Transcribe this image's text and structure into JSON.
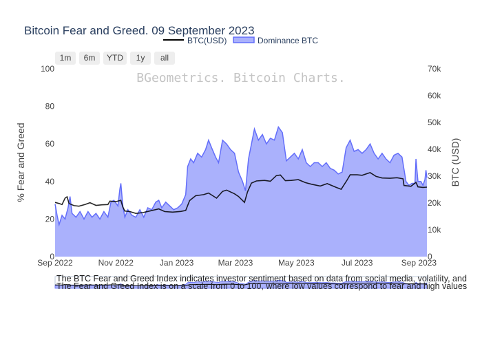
{
  "chart_data": {
    "type": "area",
    "title": "Bitcoin Fear and Greed. 09 September 2023",
    "watermark": "BGeometrics. Bitcoin Charts.",
    "legend": {
      "placement": "top-center",
      "entries": [
        {
          "name": "BTC(USD)",
          "style": "line",
          "color": "#000000"
        },
        {
          "name": "Dominance BTC",
          "style": "area",
          "color": "#636efa"
        }
      ]
    },
    "range_buttons": [
      "1m",
      "6m",
      "YTD",
      "1y",
      "all"
    ],
    "x_axis": {
      "type": "date",
      "range": [
        "2022-09-01",
        "2023-09-09"
      ],
      "tick_values": [
        "2022-09-01",
        "2022-11-01",
        "2023-01-01",
        "2023-03-01",
        "2023-05-01",
        "2023-07-01",
        "2023-09-01"
      ],
      "tick_labels": [
        "Sep 2022",
        "Nov 2022",
        "Jan 2023",
        "Mar 2023",
        "May 2023",
        "Jul 2023",
        "Sep 2023"
      ]
    },
    "y_axis_left": {
      "title": "% Fear and Greed",
      "range": [
        0,
        100
      ],
      "ticks": [
        0,
        20,
        40,
        60,
        80,
        100
      ]
    },
    "y_axis_right": {
      "title": "BTC (USD)",
      "range": [
        0,
        70000
      ],
      "ticks": [
        0,
        10000,
        20000,
        30000,
        40000,
        50000,
        60000,
        70000
      ],
      "tick_labels": [
        "0",
        "10k",
        "20k",
        "30k",
        "40k",
        "50k",
        "60k",
        "70k"
      ]
    },
    "grid": false,
    "series": [
      {
        "name": "Dominance BTC",
        "axis": "left",
        "color": "#636efa",
        "fill": "#aab1fc",
        "points": [
          [
            "2022-09-01",
            28
          ],
          [
            "2022-09-03",
            22
          ],
          [
            "2022-09-05",
            17
          ],
          [
            "2022-09-08",
            22
          ],
          [
            "2022-09-11",
            20
          ],
          [
            "2022-09-14",
            26
          ],
          [
            "2022-09-16",
            32
          ],
          [
            "2022-09-18",
            23
          ],
          [
            "2022-09-22",
            21
          ],
          [
            "2022-09-26",
            24
          ],
          [
            "2022-09-30",
            20
          ],
          [
            "2022-10-04",
            24
          ],
          [
            "2022-10-08",
            21
          ],
          [
            "2022-10-12",
            23
          ],
          [
            "2022-10-16",
            20
          ],
          [
            "2022-10-20",
            24
          ],
          [
            "2022-10-24",
            21
          ],
          [
            "2022-10-27",
            29
          ],
          [
            "2022-10-30",
            30
          ],
          [
            "2022-11-03",
            27
          ],
          [
            "2022-11-05",
            36
          ],
          [
            "2022-11-06",
            39
          ],
          [
            "2022-11-08",
            27
          ],
          [
            "2022-11-10",
            21
          ],
          [
            "2022-11-13",
            25
          ],
          [
            "2022-11-17",
            22
          ],
          [
            "2022-11-21",
            21
          ],
          [
            "2022-11-25",
            25
          ],
          [
            "2022-11-29",
            21
          ],
          [
            "2022-12-03",
            26
          ],
          [
            "2022-12-07",
            25
          ],
          [
            "2022-12-11",
            29
          ],
          [
            "2022-12-14",
            30
          ],
          [
            "2022-12-17",
            26
          ],
          [
            "2022-12-21",
            29
          ],
          [
            "2022-12-25",
            27
          ],
          [
            "2022-12-29",
            25
          ],
          [
            "2023-01-02",
            26
          ],
          [
            "2023-01-06",
            28
          ],
          [
            "2023-01-10",
            33
          ],
          [
            "2023-01-12",
            48
          ],
          [
            "2023-01-15",
            52
          ],
          [
            "2023-01-18",
            50
          ],
          [
            "2023-01-22",
            55
          ],
          [
            "2023-01-26",
            53
          ],
          [
            "2023-01-30",
            57
          ],
          [
            "2023-02-02",
            62
          ],
          [
            "2023-02-05",
            58
          ],
          [
            "2023-02-09",
            53
          ],
          [
            "2023-02-12",
            50
          ],
          [
            "2023-02-16",
            62
          ],
          [
            "2023-02-20",
            60
          ],
          [
            "2023-02-24",
            57
          ],
          [
            "2023-02-28",
            55
          ],
          [
            "2023-03-04",
            45
          ],
          [
            "2023-03-08",
            40
          ],
          [
            "2023-03-11",
            35
          ],
          [
            "2023-03-14",
            52
          ],
          [
            "2023-03-17",
            60
          ],
          [
            "2023-03-20",
            68
          ],
          [
            "2023-03-24",
            62
          ],
          [
            "2023-03-28",
            65
          ],
          [
            "2023-04-01",
            60
          ],
          [
            "2023-04-05",
            63
          ],
          [
            "2023-04-09",
            62
          ],
          [
            "2023-04-13",
            69
          ],
          [
            "2023-04-17",
            66
          ],
          [
            "2023-04-21",
            51
          ],
          [
            "2023-04-25",
            53
          ],
          [
            "2023-04-29",
            55
          ],
          [
            "2023-05-03",
            52
          ],
          [
            "2023-05-07",
            57
          ],
          [
            "2023-05-11",
            50
          ],
          [
            "2023-05-15",
            48
          ],
          [
            "2023-05-19",
            50
          ],
          [
            "2023-05-23",
            50
          ],
          [
            "2023-05-27",
            48
          ],
          [
            "2023-05-31",
            50
          ],
          [
            "2023-06-04",
            47
          ],
          [
            "2023-06-08",
            46
          ],
          [
            "2023-06-12",
            44
          ],
          [
            "2023-06-16",
            45
          ],
          [
            "2023-06-20",
            58
          ],
          [
            "2023-06-24",
            62
          ],
          [
            "2023-06-28",
            56
          ],
          [
            "2023-07-02",
            57
          ],
          [
            "2023-07-06",
            55
          ],
          [
            "2023-07-10",
            57
          ],
          [
            "2023-07-14",
            60
          ],
          [
            "2023-07-18",
            55
          ],
          [
            "2023-07-22",
            52
          ],
          [
            "2023-07-26",
            55
          ],
          [
            "2023-07-30",
            52
          ],
          [
            "2023-08-03",
            50
          ],
          [
            "2023-08-07",
            54
          ],
          [
            "2023-08-11",
            55
          ],
          [
            "2023-08-15",
            53
          ],
          [
            "2023-08-19",
            40
          ],
          [
            "2023-08-22",
            38
          ],
          [
            "2023-08-25",
            39
          ],
          [
            "2023-08-28",
            39
          ],
          [
            "2023-08-29",
            52
          ],
          [
            "2023-08-31",
            40
          ],
          [
            "2023-09-03",
            40
          ],
          [
            "2023-09-05",
            38
          ],
          [
            "2023-09-07",
            41
          ],
          [
            "2023-09-08",
            46
          ],
          [
            "2023-09-09",
            42
          ]
        ]
      },
      {
        "name": "BTC(USD)",
        "axis": "right",
        "color": "#000000",
        "points": [
          [
            "2022-09-01",
            20200
          ],
          [
            "2022-09-05",
            19800
          ],
          [
            "2022-09-08",
            19400
          ],
          [
            "2022-09-11",
            21800
          ],
          [
            "2022-09-13",
            22300
          ],
          [
            "2022-09-15",
            19800
          ],
          [
            "2022-09-20",
            19000
          ],
          [
            "2022-09-25",
            18800
          ],
          [
            "2022-10-01",
            19400
          ],
          [
            "2022-10-06",
            20100
          ],
          [
            "2022-10-12",
            19100
          ],
          [
            "2022-10-18",
            19300
          ],
          [
            "2022-10-24",
            19400
          ],
          [
            "2022-10-26",
            20700
          ],
          [
            "2022-11-01",
            20500
          ],
          [
            "2022-11-06",
            21000
          ],
          [
            "2022-11-08",
            18500
          ],
          [
            "2022-11-10",
            17000
          ],
          [
            "2022-11-15",
            16800
          ],
          [
            "2022-11-21",
            16100
          ],
          [
            "2022-11-28",
            16400
          ],
          [
            "2022-12-05",
            17000
          ],
          [
            "2022-12-14",
            17800
          ],
          [
            "2022-12-20",
            16800
          ],
          [
            "2022-12-28",
            16600
          ],
          [
            "2023-01-05",
            16850
          ],
          [
            "2023-01-10",
            17200
          ],
          [
            "2023-01-14",
            20900
          ],
          [
            "2023-01-20",
            22700
          ],
          [
            "2023-01-28",
            23100
          ],
          [
            "2023-02-02",
            23700
          ],
          [
            "2023-02-10",
            21800
          ],
          [
            "2023-02-16",
            24300
          ],
          [
            "2023-02-20",
            24800
          ],
          [
            "2023-02-28",
            23400
          ],
          [
            "2023-03-04",
            22400
          ],
          [
            "2023-03-10",
            20200
          ],
          [
            "2023-03-13",
            24100
          ],
          [
            "2023-03-17",
            27400
          ],
          [
            "2023-03-22",
            28200
          ],
          [
            "2023-03-30",
            28400
          ],
          [
            "2023-04-05",
            28100
          ],
          [
            "2023-04-11",
            30200
          ],
          [
            "2023-04-15",
            30400
          ],
          [
            "2023-04-20",
            28300
          ],
          [
            "2023-04-26",
            28400
          ],
          [
            "2023-05-03",
            28700
          ],
          [
            "2023-05-10",
            27600
          ],
          [
            "2023-05-16",
            27000
          ],
          [
            "2023-05-25",
            26300
          ],
          [
            "2023-06-01",
            27200
          ],
          [
            "2023-06-10",
            25800
          ],
          [
            "2023-06-15",
            25100
          ],
          [
            "2023-06-21",
            28600
          ],
          [
            "2023-06-24",
            30500
          ],
          [
            "2023-07-01",
            30500
          ],
          [
            "2023-07-06",
            30300
          ],
          [
            "2023-07-14",
            31300
          ],
          [
            "2023-07-20",
            29900
          ],
          [
            "2023-07-26",
            29300
          ],
          [
            "2023-08-03",
            29200
          ],
          [
            "2023-08-10",
            29400
          ],
          [
            "2023-08-16",
            29000
          ],
          [
            "2023-08-17",
            26500
          ],
          [
            "2023-08-24",
            26200
          ],
          [
            "2023-08-29",
            27700
          ],
          [
            "2023-08-31",
            26000
          ],
          [
            "2023-09-05",
            25800
          ],
          [
            "2023-09-09",
            25900
          ]
        ]
      }
    ]
  },
  "notes": [
    "The BTC Fear and Greed Index indicates investor sentiment based on data from social media, volatility, and",
    "The Fear and Greed Index is on a scale from 0 to 100, where low values correspond to fear and high values"
  ]
}
